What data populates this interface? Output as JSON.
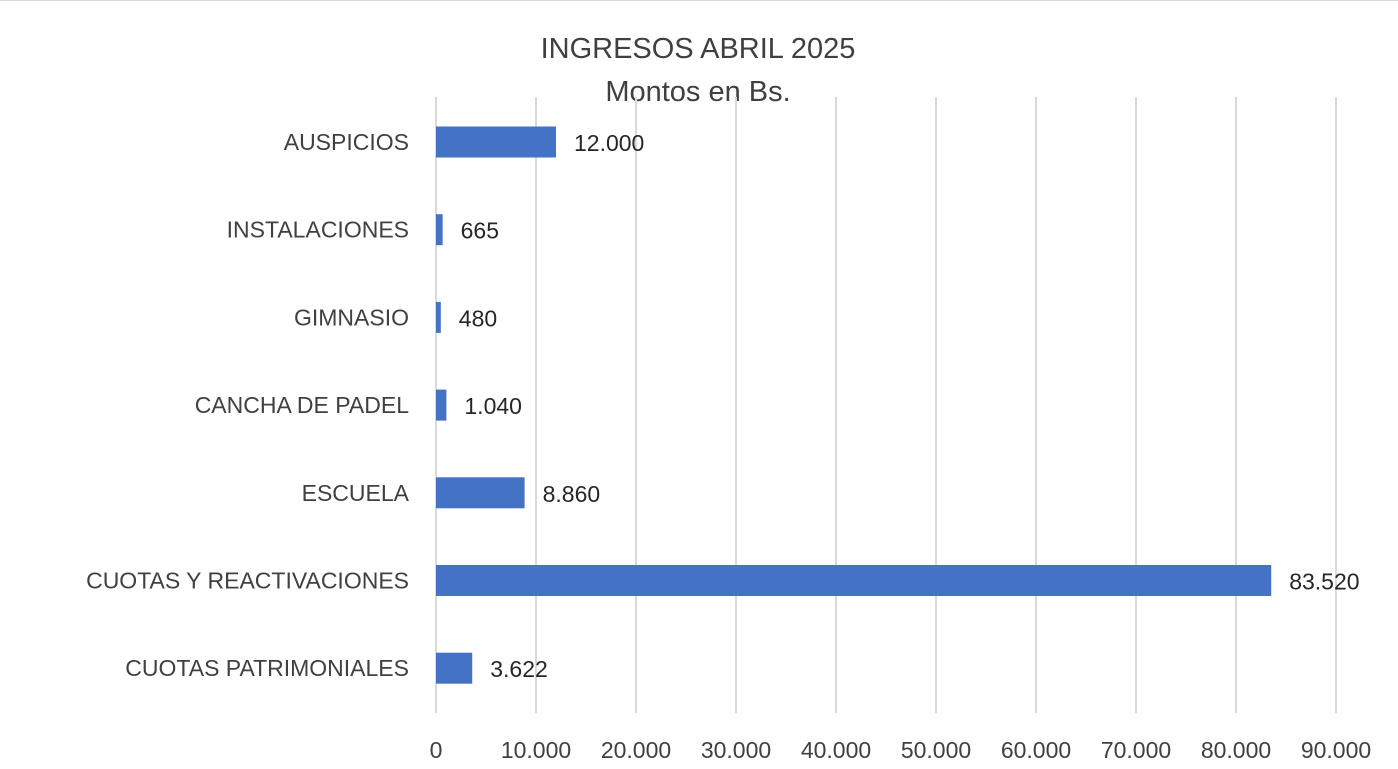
{
  "chart_data": {
    "type": "bar",
    "orientation": "horizontal",
    "title": "INGRESOS ABRIL 2025",
    "subtitle": "Montos en Bs.",
    "categories": [
      "AUSPICIOS",
      "INSTALACIONES",
      "GIMNASIO",
      "CANCHA DE PADEL",
      "ESCUELA",
      "CUOTAS Y REACTIVACIONES",
      "CUOTAS PATRIMONIALES"
    ],
    "values": [
      12000,
      665,
      480,
      1040,
      8860,
      83520,
      3622
    ],
    "data_labels": [
      "12.000",
      "665",
      "480",
      "1.040",
      "8.860",
      "83.520",
      "3.622"
    ],
    "xlim": [
      0,
      90000
    ],
    "x_ticks": [
      0,
      10000,
      20000,
      30000,
      40000,
      50000,
      60000,
      70000,
      80000,
      90000
    ],
    "x_tick_labels": [
      "0",
      "10.000",
      "20.000",
      "30.000",
      "40.000",
      "50.000",
      "60.000",
      "70.000",
      "80.000",
      "90.000"
    ],
    "xlabel": "",
    "ylabel": "",
    "grid": "vertical",
    "legend": "none",
    "bar_color": "#4472c4"
  }
}
